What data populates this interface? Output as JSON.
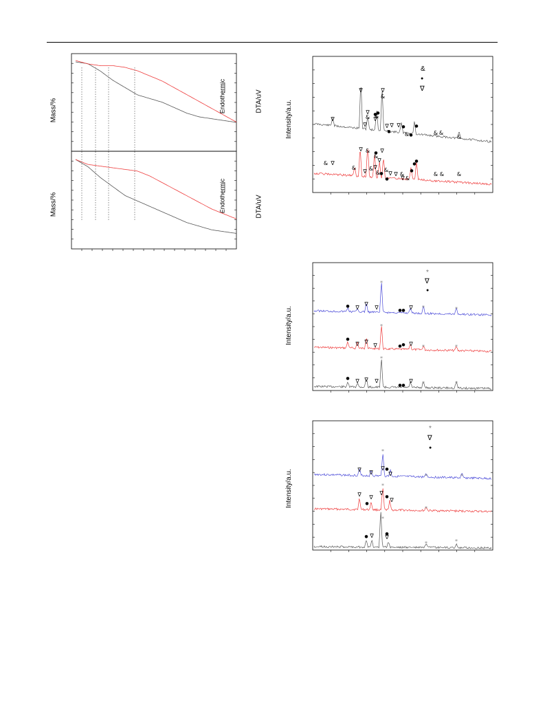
{
  "thermal": {
    "mass_label": "Mass/%",
    "dta_label": "DTA/uV",
    "endo_label": "Endothermic"
  },
  "xrd": {
    "ylabel": "Intensity/a.u."
  },
  "markers": {
    "amp": "&",
    "dot": "●",
    "tri": "∇",
    "star": "*"
  },
  "colors": {
    "black_trace": "#555555",
    "red_trace": "#ee3b3b",
    "blue_trace": "#4a4ad8"
  },
  "chart_data": [
    {
      "type": "line",
      "title": "",
      "ylabel": "Mass/%",
      "y2label": "DTA/uV",
      "annotation": "Endothermic",
      "series": [
        {
          "values": [
            100,
            99,
            95,
            90,
            86,
            82,
            80,
            78,
            75,
            72,
            70,
            69,
            68,
            67
          ]
        },
        {
          "values": [
            100,
            98,
            97,
            97,
            96,
            94,
            91,
            88,
            84,
            80,
            76,
            72,
            68,
            64
          ]
        }
      ]
    },
    {
      "type": "line",
      "title": "",
      "ylabel": "Mass/%",
      "y2label": "DTA/uV",
      "annotation": "Endothermic",
      "series": [
        {
          "values": [
            100,
            96,
            90,
            85,
            80,
            77,
            74,
            71,
            68,
            65,
            63,
            61,
            60,
            59
          ]
        },
        {
          "values": [
            100,
            97,
            96,
            95,
            94,
            93,
            90,
            86,
            82,
            78,
            74,
            70,
            67,
            64
          ]
        }
      ]
    },
    {
      "type": "line",
      "ylabel": "Intensity/a.u.",
      "legend": "top-right"
    },
    {
      "type": "line",
      "ylabel": "Intensity/a.u.",
      "legend": "top-right"
    },
    {
      "type": "line",
      "ylabel": "Intensity/a.u.",
      "legend": "top-right"
    }
  ]
}
